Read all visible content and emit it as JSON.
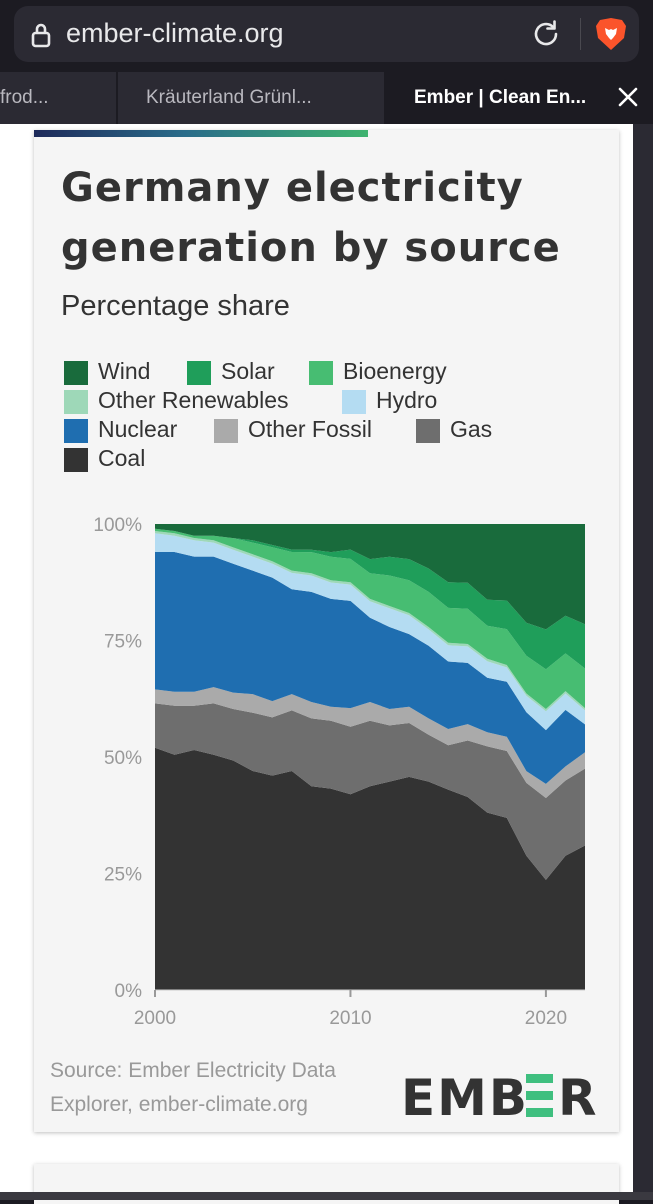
{
  "browser": {
    "url": "ember-climate.org",
    "tabs": [
      {
        "label": "frod..."
      },
      {
        "label": "Kräuterland Grünl..."
      },
      {
        "label": "Ember | Clean En..."
      }
    ]
  },
  "card": {
    "title_line1": "Germany electricity",
    "title_line2": "generation by source",
    "subtitle": "Percentage share",
    "source_line1": "Source: Ember Electricity Data",
    "source_line2": "Explorer, ember-climate.org",
    "logo_text": "EMBER"
  },
  "colors": {
    "Wind": "#196b3c",
    "Solar": "#1f9e5a",
    "Bioenergy": "#47bd72",
    "Other Renewables": "#9ed8b8",
    "Hydro": "#b4dcf2",
    "Nuclear": "#1f6eb0",
    "Other Fossil": "#aaaaaa",
    "Gas": "#6e6e6e",
    "Coal": "#333333"
  },
  "chart_data": {
    "type": "area",
    "stacked": true,
    "title": "Germany electricity generation by source",
    "subtitle": "Percentage share",
    "x": [
      2000,
      2001,
      2002,
      2003,
      2004,
      2005,
      2006,
      2007,
      2008,
      2009,
      2010,
      2011,
      2012,
      2013,
      2014,
      2015,
      2016,
      2017,
      2018,
      2019,
      2020,
      2021,
      2022
    ],
    "ylim": [
      0,
      100
    ],
    "yticks": [
      "0%",
      "25%",
      "50%",
      "75%",
      "100%"
    ],
    "xticks": [
      2000,
      2010,
      2020
    ],
    "legend_position": "top",
    "series": [
      {
        "name": "Coal",
        "values": [
          52,
          50.5,
          51.5,
          50.5,
          49,
          47,
          46,
          47,
          43.5,
          43,
          42,
          43.5,
          44.5,
          45.5,
          44.5,
          43,
          41,
          37.5,
          36,
          28.5,
          23.5,
          28.5,
          31
        ]
      },
      {
        "name": "Gas",
        "values": [
          9.5,
          10.5,
          9.5,
          11,
          11,
          12.5,
          12.5,
          13,
          14.5,
          14.5,
          14.5,
          14,
          12,
          11.5,
          10,
          9.5,
          12,
          14,
          14,
          15.5,
          17.5,
          16,
          16.5
        ]
      },
      {
        "name": "Other Fossil",
        "values": [
          3,
          3,
          3,
          3.5,
          3.5,
          4,
          3.5,
          3.5,
          3.5,
          3,
          4,
          4,
          3.5,
          3.5,
          3.5,
          3.5,
          3.5,
          3,
          3,
          2.5,
          3,
          3,
          3.5
        ]
      },
      {
        "name": "Nuclear",
        "values": [
          29.5,
          30,
          29,
          28,
          27.5,
          26.5,
          26.5,
          22.5,
          23.5,
          23,
          23,
          18,
          17.5,
          15.5,
          15.5,
          14.5,
          13,
          11.5,
          11.5,
          12.5,
          11.5,
          12,
          6
        ]
      },
      {
        "name": "Hydro",
        "values": [
          4,
          3.5,
          3.5,
          3,
          3,
          3,
          3,
          3.5,
          3.5,
          3.5,
          3.5,
          3.5,
          4,
          4,
          3.5,
          3.5,
          3.5,
          3.5,
          3,
          3.5,
          4,
          3.5,
          3
        ]
      },
      {
        "name": "Other Renewables",
        "values": [
          0.5,
          0.5,
          0.5,
          0.5,
          0.5,
          0.5,
          0.5,
          0.5,
          0.5,
          0.5,
          0.5,
          0.5,
          0.5,
          0.5,
          0.5,
          0.5,
          0.5,
          0.5,
          0.5,
          0.5,
          0.5,
          0.5,
          0.5
        ]
      },
      {
        "name": "Bioenergy",
        "values": [
          0.5,
          0.5,
          0.5,
          1,
          2,
          2.5,
          3,
          4,
          4.5,
          5,
          5,
          5.5,
          6.5,
          7,
          7.5,
          7.5,
          7.5,
          7,
          7.5,
          8,
          8.5,
          8,
          8.5
        ]
      },
      {
        "name": "Solar",
        "values": [
          0,
          0,
          0,
          0,
          0,
          0.5,
          0.5,
          0.5,
          0.5,
          1,
          2,
          3,
          4,
          4.5,
          5,
          5.5,
          5.5,
          5.5,
          6,
          7,
          8.5,
          8,
          9.5
        ]
      },
      {
        "name": "Wind",
        "values": [
          1,
          1.5,
          2.5,
          2.5,
          3,
          3.5,
          4.5,
          5.5,
          5.5,
          6,
          5.5,
          7.5,
          7,
          7.5,
          9.5,
          12.5,
          12.5,
          16,
          16,
          21,
          22.5,
          19.5,
          21.5
        ]
      }
    ]
  },
  "legend": {
    "items": [
      "Wind",
      "Solar",
      "Bioenergy",
      "Other Renewables",
      "Hydro",
      "Nuclear",
      "Other Fossil",
      "Gas",
      "Coal"
    ]
  }
}
